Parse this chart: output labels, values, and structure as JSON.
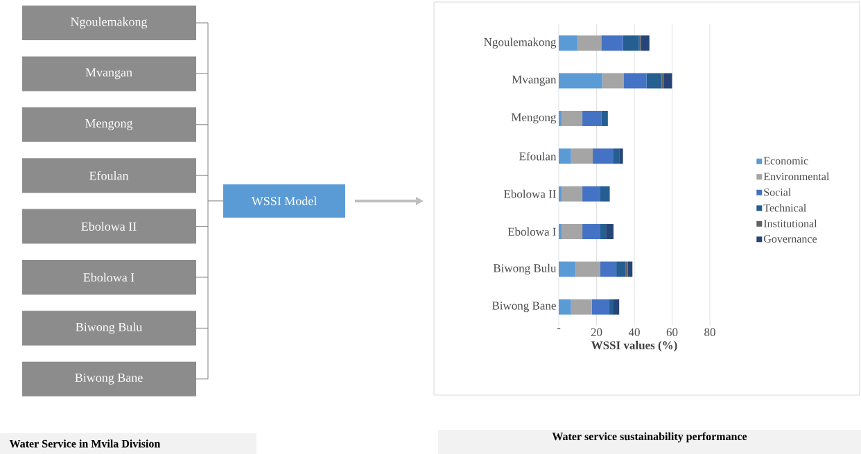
{
  "chart_data": [
    {
      "type": "other",
      "title": "Water Service in Mvila Division",
      "annotations": [
        "Ngoulemakong",
        "Mvangan",
        "Mengong",
        "Efoulan",
        "Ebolowa II",
        "Ebolowa I",
        "Biwong Bulu",
        "Biwong Bane",
        "WSSI Model"
      ]
    },
    {
      "type": "bar",
      "orientation": "horizontal",
      "stacked": true,
      "title": "Water service sustainability performance",
      "xlabel": "WSSI values (%)",
      "categories": [
        "Ngoulemakong",
        "Mvangan",
        "Mengong",
        "Efoulan",
        "Ebolowa II",
        "Ebolowa I",
        "Biwong Bulu",
        "Biwong Bane"
      ],
      "series": [
        {
          "name": "Economic",
          "color": "#5b9bd5",
          "values": [
            10,
            23,
            1.5,
            6.5,
            1.5,
            1.5,
            9,
            6.5
          ]
        },
        {
          "name": "Environmental",
          "color": "#a5a5a5",
          "values": [
            12.5,
            11.5,
            11,
            11.5,
            11,
            11,
            13,
            11
          ]
        },
        {
          "name": "Social",
          "color": "#4472c4",
          "values": [
            11.5,
            12,
            10,
            11,
            9.5,
            9.5,
            8.5,
            9
          ]
        },
        {
          "name": "Technical",
          "color": "#255e91",
          "values": [
            8.5,
            8,
            3.5,
            3,
            5,
            3,
            5,
            2.5
          ]
        },
        {
          "name": "Institutional",
          "color": "#636363",
          "values": [
            1,
            1,
            0,
            0,
            0,
            0,
            1,
            0
          ]
        },
        {
          "name": "Governance",
          "color": "#264478",
          "values": [
            4.5,
            4.5,
            0,
            2,
            0,
            4,
            2.5,
            3
          ]
        }
      ],
      "xlim": [
        0,
        80
      ],
      "xticks": [
        {
          "value": 0,
          "label": "-"
        },
        20,
        40,
        60,
        80
      ],
      "grid": "x",
      "legend": "right"
    }
  ]
}
